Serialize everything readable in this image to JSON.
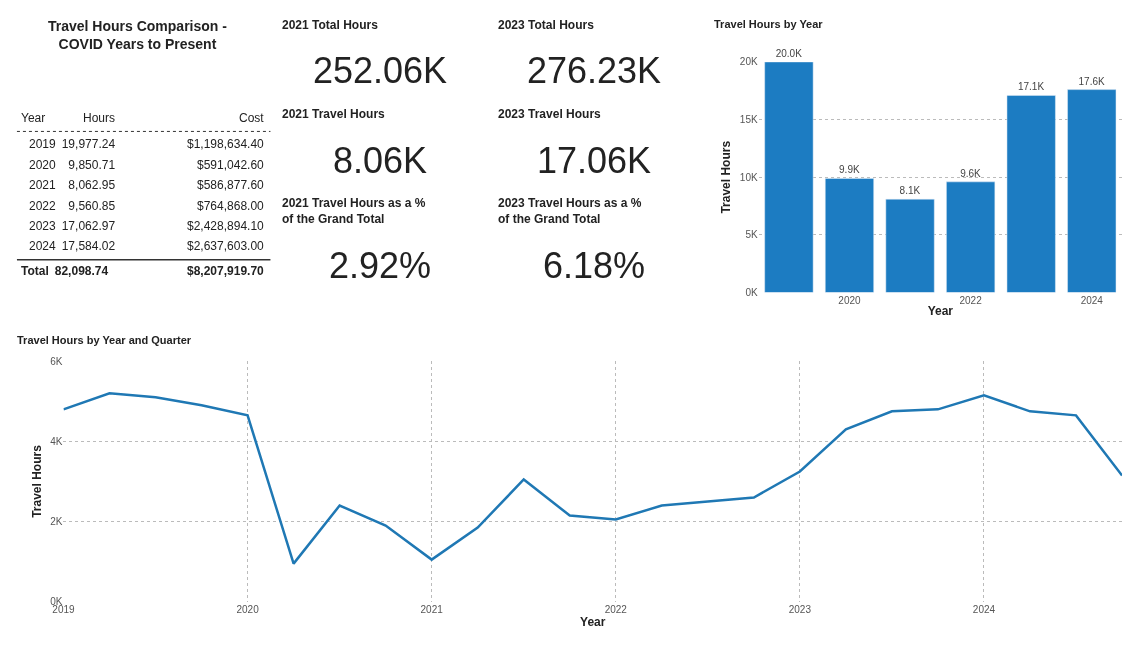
{
  "chart_data": [
    {
      "type": "other",
      "title": "Travel Hours Comparison - COVID Years to Present",
      "annotations": [
        "Year",
        "Hours",
        "Cost",
        "2019 19,977.24",
        "$1,198,634.40",
        "2020 9,850.71",
        "$591,042.60",
        "2021 8,062.95",
        "$586,877.60",
        "2022 9,560.85",
        "$764,868.00",
        "2023 17,062.97",
        "$2,428,894.10",
        "2024 17,584.02",
        "$2,637,603.00",
        "Total 82,098.74",
        "$8,207,919.70"
      ]
    },
    {
      "type": "other",
      "annotations": [
        "2021 Total Hours",
        "252.06K",
        "2021 Travel Hours",
        "8.06K",
        "2021 Travel Hours as a % of the Grand Total",
        "2.92%"
      ]
    },
    {
      "type": "other",
      "annotations": [
        "2023 Total Hours",
        "276.23K",
        "2023 Travel Hours",
        "17.06K",
        "2023 Travel Hours as a % of the Grand Total",
        "6.18%"
      ]
    },
    {
      "type": "bar",
      "title": "Travel Hours by Year",
      "xlabel": "Year",
      "ylabel": "Travel Hours",
      "categories": [
        null,
        "2020",
        null,
        "2022",
        null,
        "2024"
      ],
      "values": [
        20000,
        9900,
        8100,
        9600,
        17100,
        17600
      ],
      "value_labels": [
        "20.0K",
        "9.9K",
        "8.1K",
        "9.6K",
        "17.1K",
        "17.6K"
      ],
      "color": "#1c7cc2",
      "ylim": [
        0,
        20000
      ],
      "yticks": [
        {
          "value": 0,
          "label": "0K"
        },
        {
          "value": 5000,
          "label": "5K"
        },
        {
          "value": 10000,
          "label": "10K"
        },
        {
          "value": 15000,
          "label": "15K"
        },
        {
          "value": 20000,
          "label": "20K"
        }
      ],
      "grid": "y"
    },
    {
      "type": "line",
      "title": "Travel Hours by Year and Quarter",
      "xlabel": "Year",
      "ylabel": "Travel Hours",
      "x": [
        2019,
        2019.25,
        2019.5,
        2019.75,
        2020,
        2020.25,
        2020.5,
        2020.75,
        2021,
        2021.25,
        2021.5,
        2021.75,
        2022,
        2022.25,
        2022.5,
        2022.75,
        2023,
        2023.25,
        2023.5,
        2023.75,
        2024,
        2024.25,
        2024.5,
        2024.75
      ],
      "values": [
        4800,
        5200,
        5100,
        4900,
        4650,
        950,
        2400,
        1900,
        1050,
        1850,
        3050,
        2150,
        2050,
        2400,
        2500,
        2600,
        3250,
        4300,
        4750,
        4800,
        5150,
        4750,
        4650,
        3150
      ],
      "color": "#1f78b4",
      "xlim": [
        2019,
        2024.75
      ],
      "xticks": [
        2019,
        2020,
        2021,
        2022,
        2023,
        2024
      ],
      "ylim": [
        0,
        6000
      ],
      "yticks": [
        {
          "value": 0,
          "label": "0K"
        },
        {
          "value": 2000,
          "label": "2K"
        },
        {
          "value": 4000,
          "label": "4K"
        },
        {
          "value": 6000,
          "label": "6K"
        }
      ],
      "grid": true,
      "marker": "none",
      "line_style": "solid"
    }
  ]
}
